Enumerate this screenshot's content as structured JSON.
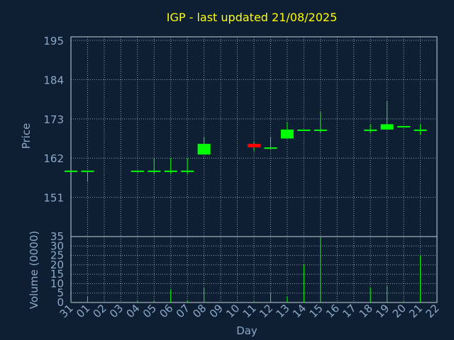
{
  "chart_data": {
    "type": "candlestick",
    "title": "IGP - last updated 21/08/2025",
    "xlabel": "Day",
    "colors": {
      "background": "#0e1f33",
      "grid": "#c8d2dc",
      "title": "#ffff00",
      "text": "#8caac8",
      "up": "#00ff00",
      "down": "#ff0000",
      "wick": "#00ff00",
      "volume": "#00ff00"
    },
    "x_ticks": [
      "31",
      "01",
      "02",
      "03",
      "04",
      "05",
      "06",
      "07",
      "08",
      "09",
      "10",
      "11",
      "12",
      "13",
      "14",
      "15",
      "16",
      "17",
      "18",
      "19",
      "20",
      "21",
      "22"
    ],
    "price_panel": {
      "ylabel": "Price",
      "ylim": [
        140,
        196
      ],
      "y_ticks": [
        "195",
        "184",
        "173",
        "162",
        "151"
      ],
      "y_tick_values": [
        195,
        184,
        173,
        162,
        151
      ]
    },
    "volume_panel": {
      "ylabel": "Volume (0000)",
      "ylim": [
        0,
        35
      ],
      "y_ticks": [
        "35",
        "30",
        "25",
        "20",
        "15",
        "10",
        "5",
        "0"
      ],
      "y_tick_values": [
        35,
        30,
        25,
        20,
        15,
        10,
        5,
        0
      ]
    },
    "candles": [
      {
        "day": "31",
        "open": 158.5,
        "high": 158.5,
        "low": 158.5,
        "close": 158.5,
        "volume": 0.5
      },
      {
        "day": "01",
        "open": 158.5,
        "high": 158.5,
        "low": 155.5,
        "close": 158.5,
        "volume": 3
      },
      {
        "day": "04",
        "open": 158.5,
        "high": 158.5,
        "low": 158,
        "close": 158.5,
        "volume": 1
      },
      {
        "day": "05",
        "open": 158.5,
        "high": 162,
        "low": 157.5,
        "close": 158.5,
        "volume": 1
      },
      {
        "day": "06",
        "open": 158.5,
        "high": 162,
        "low": 157.5,
        "close": 158.5,
        "volume": 7
      },
      {
        "day": "07",
        "open": 158.5,
        "high": 162,
        "low": 157.5,
        "close": 158.5,
        "volume": 1
      },
      {
        "day": "08",
        "open": 163,
        "high": 168,
        "low": 163,
        "close": 166,
        "volume": 8
      },
      {
        "day": "11",
        "open": 166,
        "high": 166.5,
        "low": 164,
        "close": 165,
        "volume": 0.5
      },
      {
        "day": "12",
        "open": 165,
        "high": 168,
        "low": 164.5,
        "close": 165,
        "volume": 5
      },
      {
        "day": "13",
        "open": 167.5,
        "high": 172,
        "low": 167.5,
        "close": 170,
        "volume": 3
      },
      {
        "day": "14",
        "open": 170,
        "high": 170,
        "low": 170,
        "close": 170,
        "volume": 20
      },
      {
        "day": "15",
        "open": 170,
        "high": 175,
        "low": 169,
        "close": 170,
        "volume": 35
      },
      {
        "day": "18",
        "open": 170,
        "high": 171.5,
        "low": 169,
        "close": 170,
        "volume": 8
      },
      {
        "day": "19",
        "open": 170,
        "high": 178,
        "low": 170,
        "close": 171.5,
        "volume": 9
      },
      {
        "day": "20",
        "open": 171,
        "high": 171,
        "low": 171,
        "close": 171,
        "volume": 0.5
      },
      {
        "day": "21",
        "open": 170,
        "high": 171.5,
        "low": 168.5,
        "close": 170,
        "volume": 25
      }
    ]
  }
}
